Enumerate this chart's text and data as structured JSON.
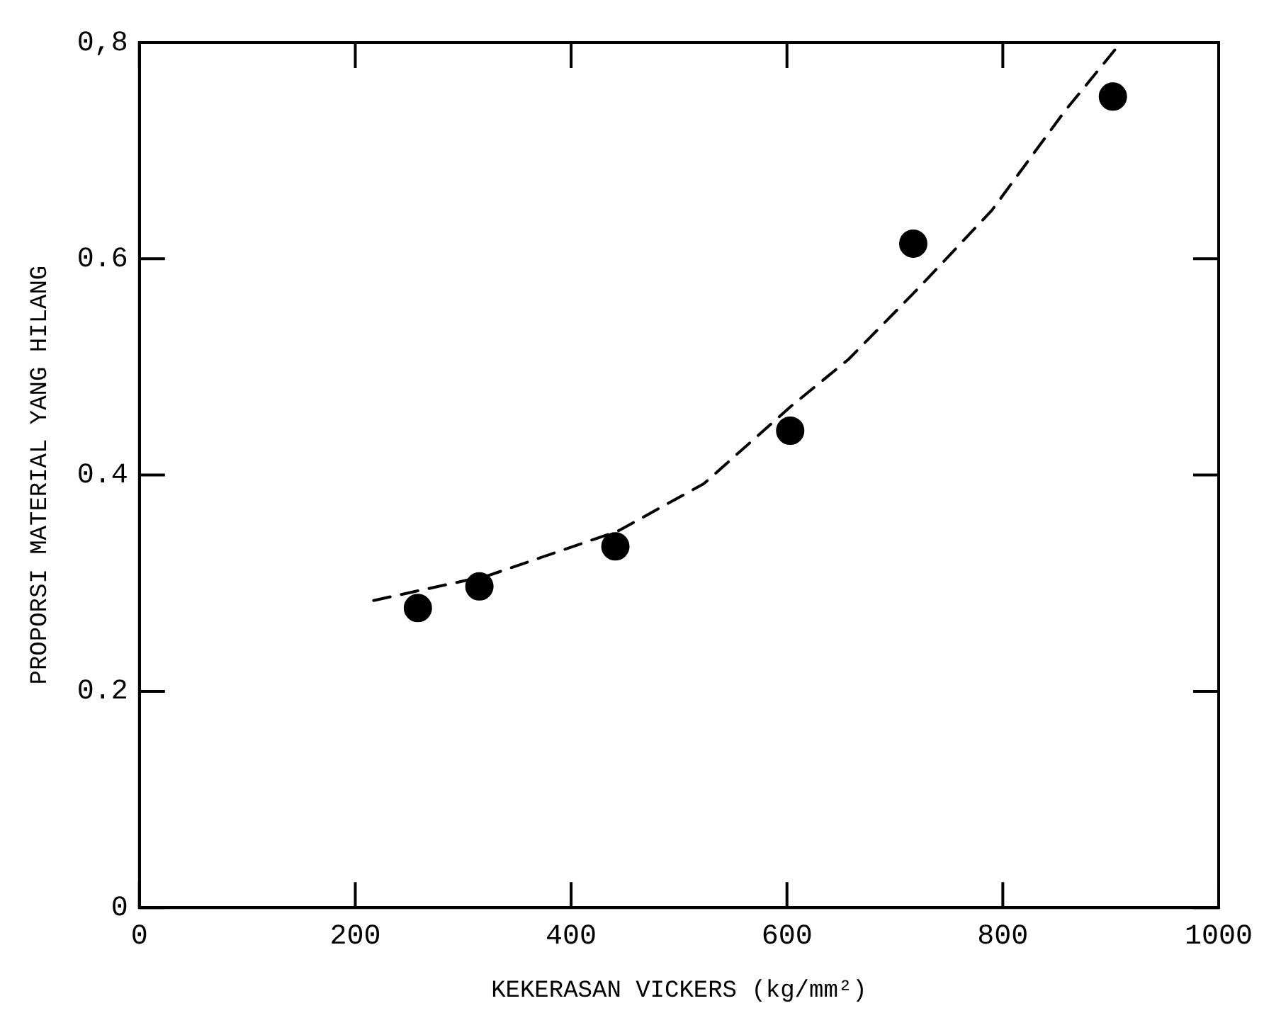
{
  "chart_data": {
    "type": "scatter",
    "xlabel": "KEKERASAN VICKERS (kg/mm²)",
    "ylabel": "PROPORSI MATERIAL YANG HILANG",
    "xlim": [
      0,
      1000
    ],
    "xticks": [
      0,
      200,
      400,
      600,
      800,
      1000
    ],
    "ylim": [
      0,
      0.8
    ],
    "yticks": [
      0,
      0.2,
      0.4,
      0.6,
      {
        "value": 0.8,
        "label": "0,8"
      }
    ],
    "grid": false,
    "legend": false,
    "series": [
      {
        "color": "#000000",
        "marker": "circle",
        "x": [
          258,
          315,
          441,
          603,
          717,
          902
        ],
        "values": [
          0.277,
          0.297,
          0.334,
          0.441,
          0.614,
          0.75
        ]
      },
      {
        "type": "line",
        "color": "#000000",
        "marker": "none",
        "line_style": "dashed",
        "x": [
          217,
          323,
          443,
          523,
          603,
          657,
          723,
          790,
          857,
          907
        ],
        "values": [
          0.284,
          0.307,
          0.348,
          0.392,
          0.463,
          0.507,
          0.574,
          0.645,
          0.736,
          0.797
        ]
      }
    ]
  }
}
